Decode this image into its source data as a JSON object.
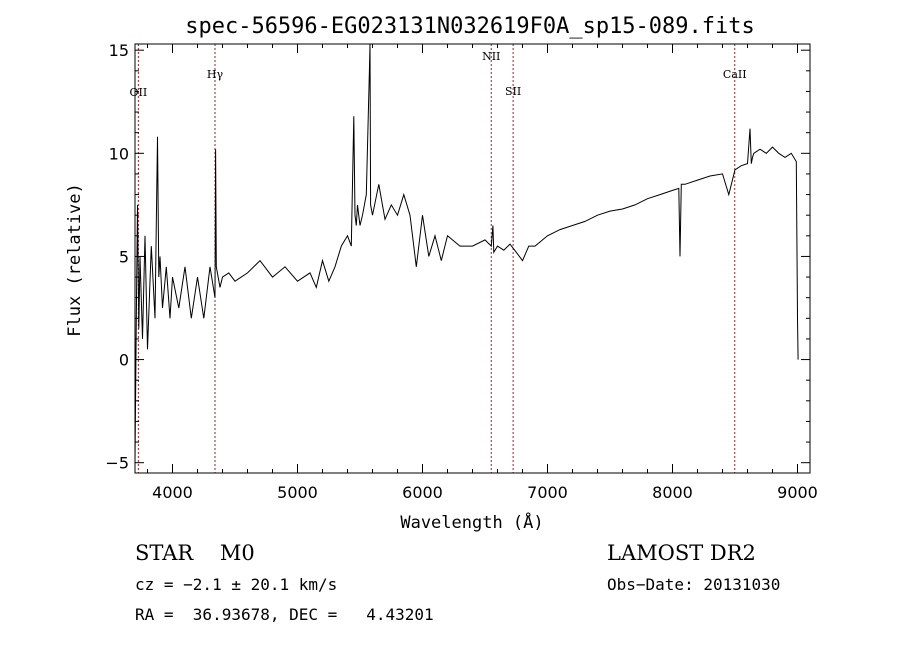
{
  "chart_data": {
    "type": "line",
    "title": "spec-56596-EG023131N032619F0A_sp15-089.fits",
    "xlabel": "Wavelength (Å)",
    "ylabel": "Flux (relative)",
    "xlim": [
      3700,
      9100
    ],
    "ylim": [
      -5.5,
      15.3
    ],
    "xticks": [
      4000,
      5000,
      6000,
      7000,
      8000,
      9000
    ],
    "yticks": [
      -5,
      0,
      5,
      10,
      15
    ],
    "ytick_labels": [
      "−5",
      "0",
      "5",
      "10",
      "15"
    ],
    "series": [
      {
        "x": [
          3700,
          3710,
          3720,
          3730,
          3740,
          3760,
          3780,
          3800,
          3830,
          3860,
          3880,
          3890,
          3900,
          3920,
          3950,
          3980,
          4000,
          4050,
          4100,
          4150,
          4200,
          4250,
          4300,
          4340,
          4345,
          4350,
          4380,
          4400,
          4450,
          4500,
          4600,
          4700,
          4800,
          4900,
          5000,
          5100,
          5150,
          5200,
          5250,
          5300,
          5350,
          5400,
          5430,
          5450,
          5460,
          5470,
          5480,
          5500,
          5520,
          5550,
          5575,
          5580,
          5585,
          5600,
          5650,
          5700,
          5750,
          5800,
          5850,
          5900,
          5950,
          6000,
          6050,
          6100,
          6150,
          6200,
          6300,
          6400,
          6500,
          6550,
          6563,
          6570,
          6600,
          6650,
          6700,
          6750,
          6800,
          6850,
          6900,
          7000,
          7100,
          7200,
          7300,
          7400,
          7500,
          7600,
          7700,
          7800,
          7900,
          8000,
          8050,
          8060,
          8070,
          8100,
          8200,
          8300,
          8400,
          8450,
          8500,
          8550,
          8600,
          8620,
          8630,
          8640,
          8650,
          8700,
          8750,
          8800,
          8850,
          8900,
          8950,
          8990,
          9000,
          9005
        ],
        "y": [
          -5,
          2.0,
          7.5,
          1.5,
          5.0,
          1.0,
          6.0,
          0.5,
          5.5,
          2.0,
          10.8,
          4.0,
          5.0,
          2.5,
          4.5,
          2.0,
          4.0,
          2.5,
          4.5,
          2.0,
          4.0,
          2.0,
          4.5,
          3.0,
          10.2,
          4.5,
          3.5,
          4.0,
          4.2,
          3.8,
          4.2,
          4.8,
          4.0,
          4.5,
          3.8,
          4.2,
          3.5,
          4.8,
          3.8,
          4.5,
          5.5,
          6.0,
          5.5,
          11.8,
          7.0,
          6.5,
          7.5,
          6.5,
          7.0,
          8.0,
          14.0,
          15.3,
          7.5,
          7.0,
          8.5,
          6.8,
          7.5,
          7.0,
          8.0,
          7.0,
          4.5,
          7.0,
          5.0,
          6.0,
          4.8,
          6.0,
          5.5,
          5.5,
          5.8,
          5.5,
          6.5,
          5.2,
          5.5,
          5.3,
          5.6,
          5.2,
          4.8,
          5.5,
          5.5,
          6.0,
          6.3,
          6.5,
          6.7,
          7.0,
          7.2,
          7.3,
          7.5,
          7.8,
          8.0,
          8.2,
          8.3,
          5.0,
          8.5,
          8.5,
          8.7,
          8.9,
          9.0,
          8.0,
          9.2,
          9.4,
          9.5,
          11.2,
          9.5,
          9.8,
          10.0,
          10.2,
          10.0,
          10.3,
          10.0,
          9.8,
          10.0,
          9.6,
          2.0,
          0.0
        ]
      }
    ],
    "lines": [
      {
        "label": "OII",
        "x": 3727
      },
      {
        "label": "Hγ",
        "x": 4340
      },
      {
        "label": "NII",
        "x": 6550
      },
      {
        "label": "SII",
        "x": 6725
      },
      {
        "label": "CaII",
        "x": 8498
      }
    ],
    "grid": false,
    "colors": {
      "spectrum": "#000000",
      "marker": "#a02020"
    }
  },
  "info": {
    "class_line": "STAR    M0",
    "survey": "LAMOST DR2",
    "cz": "cz = −2.1 ± 20.1 km/s",
    "obs_date": "Obs−Date: 20131030",
    "radec": "RA =  36.93678, DEC =   4.43201"
  }
}
